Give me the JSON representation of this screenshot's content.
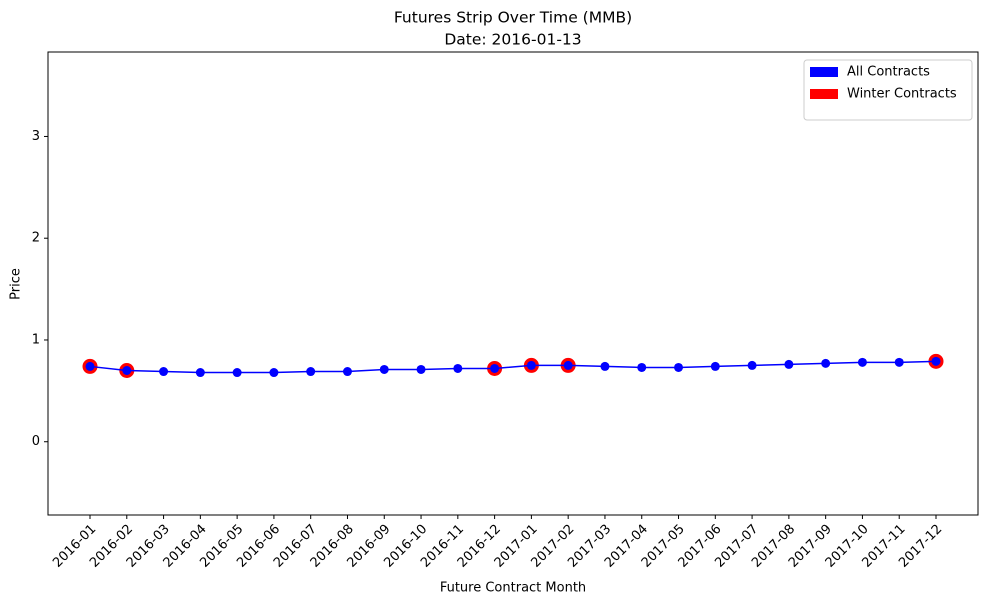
{
  "chart_data": {
    "type": "line",
    "title": "Futures Strip Over Time (MMB)",
    "subtitle": "Date: 2016-01-13",
    "x_label": "Future Contract Month",
    "y_label": "Price",
    "categories": [
      "2016-01",
      "2016-02",
      "2016-03",
      "2016-04",
      "2016-05",
      "2016-06",
      "2016-07",
      "2016-08",
      "2016-09",
      "2016-10",
      "2016-11",
      "2016-12",
      "2017-01",
      "2017-02",
      "2017-03",
      "2017-04",
      "2017-05",
      "2017-06",
      "2017-07",
      "2017-08",
      "2017-09",
      "2017-10",
      "2017-11",
      "2017-12"
    ],
    "series": [
      {
        "name": "Winter Contracts",
        "color": "#ff0000",
        "style": "scatter",
        "values": [
          0.74,
          0.7,
          null,
          null,
          null,
          null,
          null,
          null,
          null,
          null,
          null,
          0.72,
          0.75,
          0.75,
          null,
          null,
          null,
          null,
          null,
          null,
          null,
          null,
          null,
          0.79
        ]
      },
      {
        "name": "All Contracts",
        "color": "#0000ff",
        "style": "line",
        "values": [
          0.74,
          0.7,
          0.69,
          0.68,
          0.68,
          0.68,
          0.69,
          0.69,
          0.71,
          0.71,
          0.72,
          0.72,
          0.75,
          0.75,
          0.74,
          0.73,
          0.73,
          0.74,
          0.75,
          0.76,
          0.77,
          0.78,
          0.78,
          0.79
        ]
      }
    ],
    "legend_order": [
      1,
      0
    ],
    "legend": "upper right",
    "ylim": [
      -0.72,
      3.83
    ],
    "yticks": [
      0,
      1,
      2,
      3
    ],
    "grid": false
  }
}
